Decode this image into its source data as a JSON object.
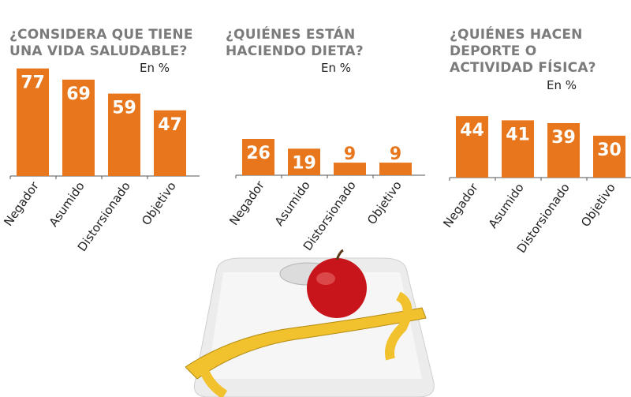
{
  "chart_data": [
    {
      "type": "bar",
      "title": "¿CONSIDERA QUE TIENE\nUNA VIDA SALUDABLE?",
      "unit": "En %",
      "categories": [
        "Negador",
        "Asumido",
        "Distorsionado",
        "Objetivo"
      ],
      "values": [
        77,
        69,
        59,
        47
      ],
      "ylim": [
        0,
        80
      ]
    },
    {
      "type": "bar",
      "title": "¿QUIÉNES ESTÁN\nHACIENDO DIETA?",
      "unit": "En %",
      "categories": [
        "Negador",
        "Asumido",
        "Distorsionado",
        "Objetivo"
      ],
      "values": [
        26,
        19,
        9,
        9
      ],
      "ylim": [
        0,
        80
      ]
    },
    {
      "type": "bar",
      "title": "¿QUIÉNES HACEN\nDEPORTE O\nACTIVIDAD FÍSICA?",
      "unit": "En %",
      "categories": [
        "Negador",
        "Asumido",
        "Distorsionado",
        "Objetivo"
      ],
      "values": [
        44,
        41,
        39,
        30
      ],
      "ylim": [
        0,
        80
      ]
    }
  ],
  "colors": {
    "bar": "#e8761c",
    "title": "#7b7b7b"
  }
}
